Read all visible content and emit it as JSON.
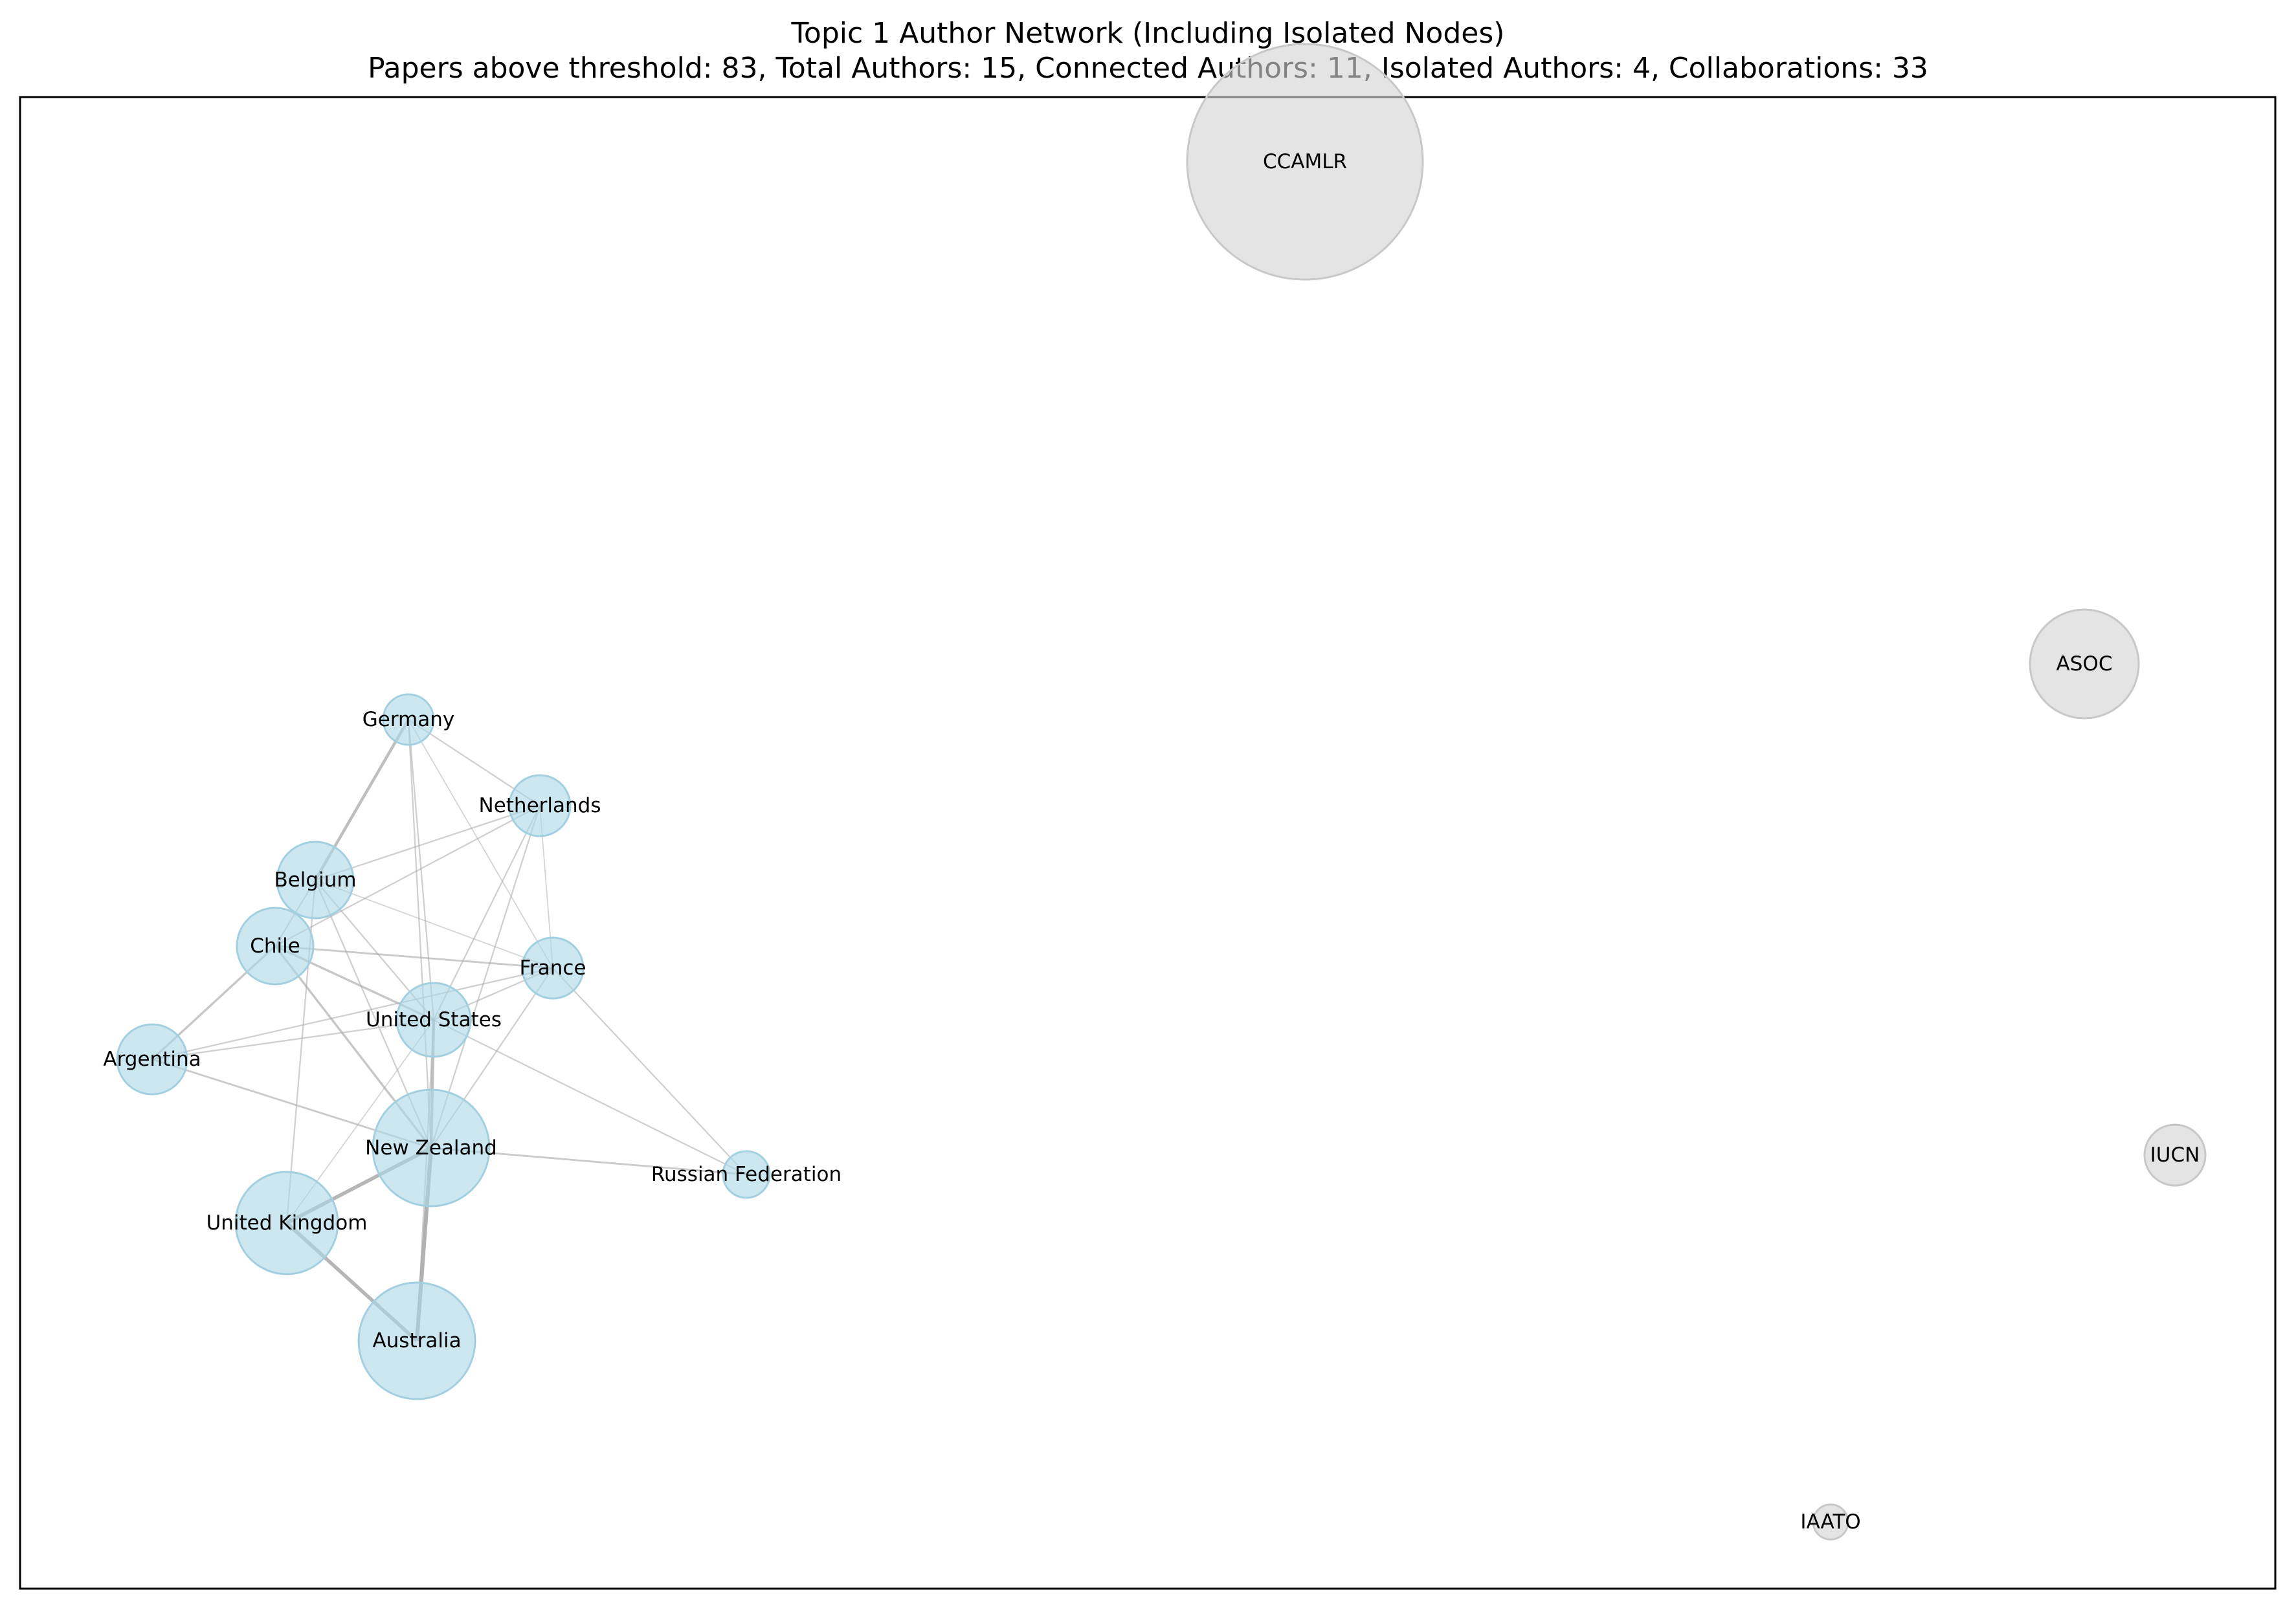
{
  "title": "Topic 1 Author Network (Including Isolated Nodes)",
  "subtitle": "Papers above threshold: 83, Total Authors: 15, Connected Authors: 11, Isolated Authors: 4, Collaborations: 33",
  "colors": {
    "connected_node": "#add8e6",
    "isolated_node": "#d3d3d3",
    "edge": "#a9a9a9",
    "frame": "#000000"
  },
  "nodes": [
    {
      "id": "CCAMLR",
      "label": "CCAMLR",
      "isolated": true,
      "weight": 9.0
    },
    {
      "id": "ASOC",
      "label": "ASOC",
      "isolated": true,
      "weight": 2.2
    },
    {
      "id": "IUCN",
      "label": "IUCN",
      "isolated": true,
      "weight": 0.8
    },
    {
      "id": "IAATO",
      "label": "IAATO",
      "isolated": true,
      "weight": 0.3
    },
    {
      "id": "Germany",
      "label": "Germany",
      "isolated": false,
      "weight": 0.7
    },
    {
      "id": "Netherlands",
      "label": "Netherlands",
      "isolated": false,
      "weight": 0.9
    },
    {
      "id": "Belgium",
      "label": "Belgium",
      "isolated": false,
      "weight": 1.4
    },
    {
      "id": "Chile",
      "label": "Chile",
      "isolated": false,
      "weight": 1.4
    },
    {
      "id": "France",
      "label": "France",
      "isolated": false,
      "weight": 1.0
    },
    {
      "id": "United States",
      "label": "United States",
      "isolated": false,
      "weight": 1.4
    },
    {
      "id": "Argentina",
      "label": "Argentina",
      "isolated": false,
      "weight": 1.2
    },
    {
      "id": "New Zealand",
      "label": "New Zealand",
      "isolated": false,
      "weight": 3.6
    },
    {
      "id": "Russian Federation",
      "label": "Russian Federation",
      "isolated": false,
      "weight": 0.6
    },
    {
      "id": "United Kingdom",
      "label": "United Kingdom",
      "isolated": false,
      "weight": 2.7
    },
    {
      "id": "Australia",
      "label": "Australia",
      "isolated": false,
      "weight": 3.5
    }
  ],
  "edges": [
    {
      "source": "Germany",
      "target": "Belgium",
      "weight": 3
    },
    {
      "source": "Germany",
      "target": "Netherlands",
      "weight": 1
    },
    {
      "source": "Germany",
      "target": "United States",
      "weight": 1
    },
    {
      "source": "Germany",
      "target": "New Zealand",
      "weight": 1
    },
    {
      "source": "Germany",
      "target": "France",
      "weight": 0.5
    },
    {
      "source": "Netherlands",
      "target": "Belgium",
      "weight": 1
    },
    {
      "source": "Netherlands",
      "target": "Chile",
      "weight": 1
    },
    {
      "source": "Netherlands",
      "target": "United States",
      "weight": 1
    },
    {
      "source": "Netherlands",
      "target": "New Zealand",
      "weight": 1
    },
    {
      "source": "Netherlands",
      "target": "France",
      "weight": 0.5
    },
    {
      "source": "Belgium",
      "target": "France",
      "weight": 0.5
    },
    {
      "source": "Belgium",
      "target": "United States",
      "weight": 1
    },
    {
      "source": "Belgium",
      "target": "New Zealand",
      "weight": 1
    },
    {
      "source": "Belgium",
      "target": "United Kingdom",
      "weight": 1
    },
    {
      "source": "Belgium",
      "target": "Chile",
      "weight": 1
    },
    {
      "source": "Chile",
      "target": "France",
      "weight": 1.5
    },
    {
      "source": "Chile",
      "target": "United States",
      "weight": 2
    },
    {
      "source": "Chile",
      "target": "Argentina",
      "weight": 2
    },
    {
      "source": "Chile",
      "target": "New Zealand",
      "weight": 2
    },
    {
      "source": "France",
      "target": "United States",
      "weight": 1
    },
    {
      "source": "France",
      "target": "Argentina",
      "weight": 1
    },
    {
      "source": "France",
      "target": "New Zealand",
      "weight": 1
    },
    {
      "source": "France",
      "target": "Russian Federation",
      "weight": 1
    },
    {
      "source": "United States",
      "target": "Argentina",
      "weight": 1
    },
    {
      "source": "United States",
      "target": "New Zealand",
      "weight": 3
    },
    {
      "source": "United States",
      "target": "Russian Federation",
      "weight": 1
    },
    {
      "source": "United States",
      "target": "United Kingdom",
      "weight": 0.5
    },
    {
      "source": "United States",
      "target": "Australia",
      "weight": 1
    },
    {
      "source": "Argentina",
      "target": "New Zealand",
      "weight": 1.5
    },
    {
      "source": "New Zealand",
      "target": "Russian Federation",
      "weight": 1.5
    },
    {
      "source": "New Zealand",
      "target": "United Kingdom",
      "weight": 4
    },
    {
      "source": "New Zealand",
      "target": "Australia",
      "weight": 4.5
    },
    {
      "source": "United Kingdom",
      "target": "Australia",
      "weight": 4
    }
  ]
}
